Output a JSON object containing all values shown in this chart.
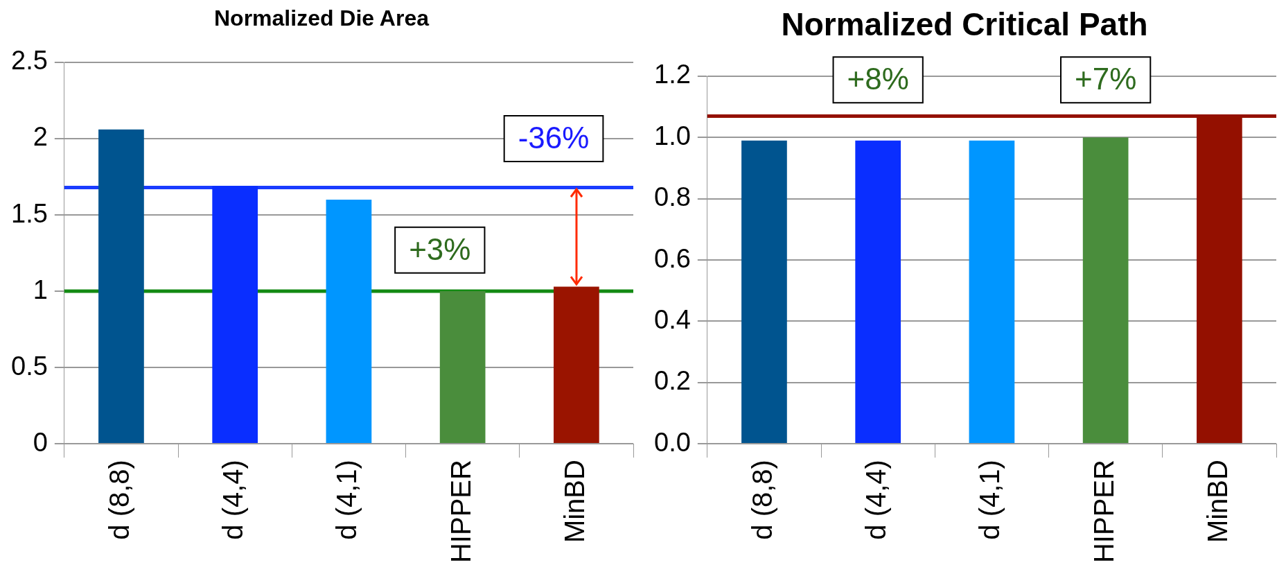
{
  "chart_data": [
    {
      "type": "bar",
      "title": "Normalized Die Area",
      "categories": [
        "d (8,8)",
        "d (4,4)",
        "d (4,1)",
        "HIPPER",
        "MinBD"
      ],
      "values": [
        2.06,
        1.69,
        1.6,
        1.0,
        1.03
      ],
      "colors": [
        "#00548f",
        "#0a2eff",
        "#0096ff",
        "#4a8d3c",
        "#9a1400"
      ],
      "ylim": [
        0,
        2.5
      ],
      "yticks": [
        0,
        {
          "value": 0.5,
          "label": "0.5"
        },
        {
          "value": 1,
          "label": "1"
        },
        {
          "value": 1.5,
          "label": "1.5"
        },
        {
          "value": 2,
          "label": "2"
        },
        {
          "value": 2.5,
          "label": "2.5"
        }
      ],
      "grid": "y",
      "legend": false,
      "ref_lines": [
        {
          "axis": "y",
          "value": 1.68,
          "color": "#1a3cff"
        },
        {
          "axis": "y",
          "value": 1.0,
          "color": "#138a13"
        }
      ],
      "annotations": [
        {
          "text": "-36%",
          "x": "MinBD",
          "y": 1.03
        },
        "+3%"
      ]
    },
    {
      "type": "bar",
      "title": "Normalized Critical Path",
      "categories": [
        "d (8,8)",
        "d (4,4)",
        "d (4,1)",
        "HIPPER",
        "MinBD"
      ],
      "values": [
        0.99,
        0.99,
        0.99,
        1.0,
        1.07
      ],
      "colors": [
        "#00548f",
        "#0a2eff",
        "#0096ff",
        "#4a8d3c",
        "#941000"
      ],
      "ylim": [
        0,
        1.2
      ],
      "yticks": [
        {
          "value": 0,
          "label": "0.0"
        },
        {
          "value": 0.2,
          "label": "0.2"
        },
        {
          "value": 0.4,
          "label": "0.4"
        },
        {
          "value": 0.6,
          "label": "0.6"
        },
        {
          "value": 0.8,
          "label": "0.8"
        },
        {
          "value": 1,
          "label": "1.0"
        },
        {
          "value": 1.2,
          "label": "1.2"
        }
      ],
      "grid": "y",
      "legend": false,
      "ref_lines": [
        {
          "axis": "y",
          "value": 1.07,
          "color": "#941000"
        }
      ],
      "annotations": [
        "+8%",
        "+7%"
      ]
    }
  ]
}
